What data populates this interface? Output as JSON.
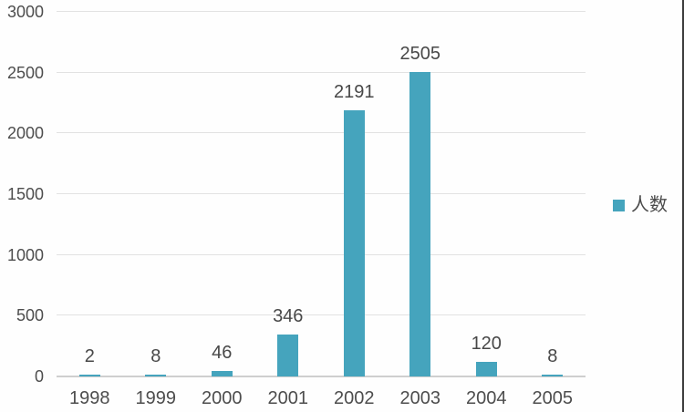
{
  "chart_data": {
    "type": "bar",
    "title": "",
    "xlabel": "",
    "ylabel": "",
    "categories": [
      "1998",
      "1999",
      "2000",
      "2001",
      "2002",
      "2003",
      "2004",
      "2005"
    ],
    "series": [
      {
        "name": "人数",
        "values": [
          2,
          8,
          46,
          346,
          2191,
          2505,
          120,
          8
        ]
      }
    ],
    "ylim": [
      0,
      3000
    ],
    "yticks": [
      0,
      500,
      1000,
      1500,
      2000,
      2500,
      3000
    ],
    "grid": true,
    "data_labels": true,
    "legend_position": "right",
    "bar_color": "#45a4bd"
  },
  "colors": {
    "accent": "#45a4bd",
    "text": "#4d4d4d",
    "gridline": "#e2e2e2",
    "axis_line": "#cfcfcf",
    "background": "#fefefe",
    "frame_edge": "#3c3c3c"
  }
}
